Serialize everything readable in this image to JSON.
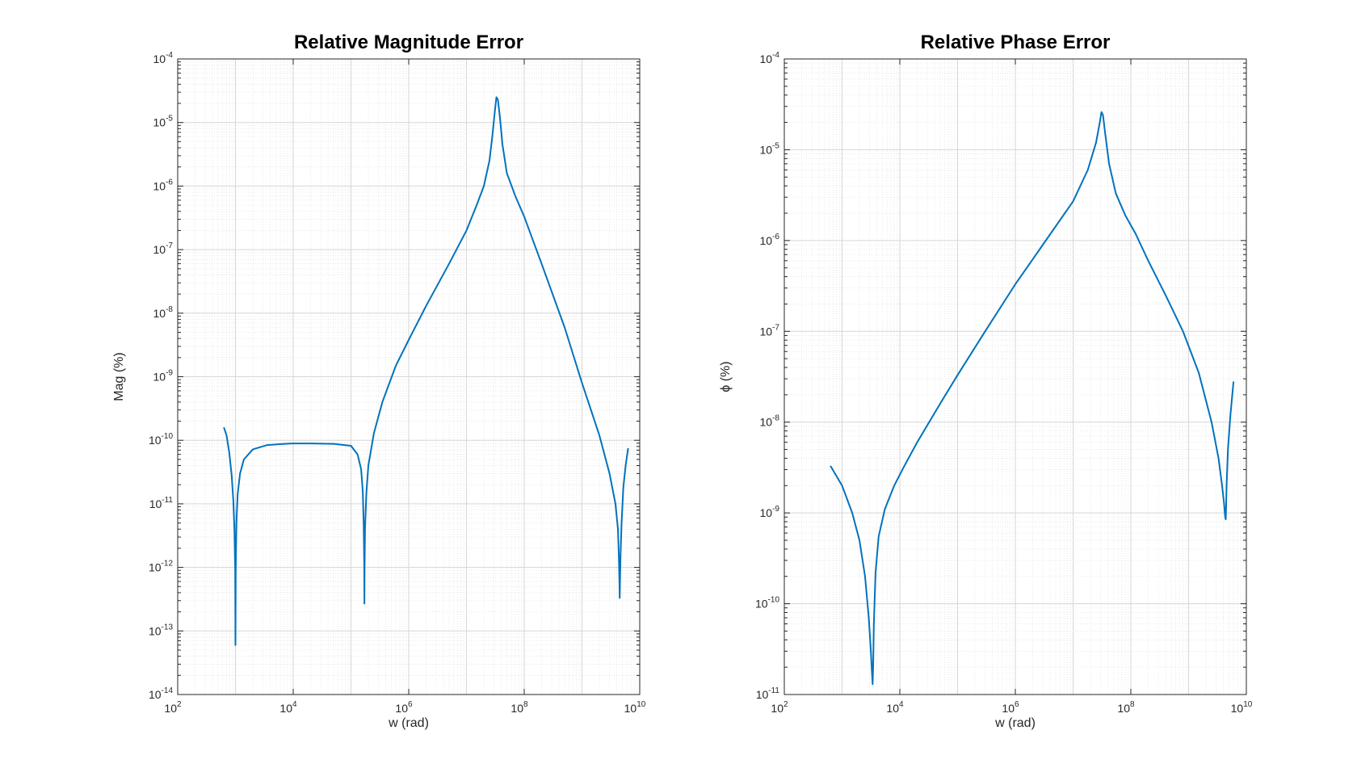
{
  "colors": {
    "line": "#0072BD",
    "axis": "#262626",
    "grid_major": "#d6d6d6",
    "grid_minor": "#e4e4e4",
    "background": "#ffffff"
  },
  "chart_data": [
    {
      "type": "line",
      "title": "Relative Magnitude Error",
      "xlabel": "w (rad)",
      "ylabel": "Mag (%)",
      "xscale": "log",
      "yscale": "log",
      "xlim": [
        100,
        10000000000
      ],
      "ylim": [
        1e-14,
        0.0001
      ],
      "xticks": [
        {
          "base": "10",
          "exp": "2"
        },
        {
          "base": "10",
          "exp": "4"
        },
        {
          "base": "10",
          "exp": "6"
        },
        {
          "base": "10",
          "exp": "8"
        },
        {
          "base": "10",
          "exp": "10"
        }
      ],
      "yticks": [
        {
          "base": "10",
          "exp": "-14"
        },
        {
          "base": "10",
          "exp": "-13"
        },
        {
          "base": "10",
          "exp": "-12"
        },
        {
          "base": "10",
          "exp": "-11"
        },
        {
          "base": "10",
          "exp": "-10"
        },
        {
          "base": "10",
          "exp": "-9"
        },
        {
          "base": "10",
          "exp": "-8"
        },
        {
          "base": "10",
          "exp": "-7"
        },
        {
          "base": "10",
          "exp": "-6"
        },
        {
          "base": "10",
          "exp": "-5"
        },
        {
          "base": "10",
          "exp": "-4"
        }
      ],
      "grid": true,
      "series": [
        {
          "x": [
            630,
            700,
            780,
            860,
            920,
            960,
            990,
            1000,
            1010,
            1040,
            1090,
            1200,
            1400,
            2000,
            3500,
            7000,
            10000,
            20000,
            50000,
            100000,
            130000,
            150000,
            160000,
            166000,
            170000,
            171000,
            172000,
            175000,
            185000,
            200000,
            250000,
            350000,
            600000,
            1000000,
            2000000,
            5000000,
            10000000,
            15000000,
            20000000,
            25000000,
            28000000,
            31000000,
            33000000,
            35000000,
            38000000,
            42000000,
            50000000,
            70000000,
            100000000,
            200000000,
            500000000,
            1000000000,
            2000000000,
            3000000000,
            3800000000,
            4200000000,
            4350000000,
            4450000000,
            4500000000,
            4550000000,
            4650000000,
            4850000000,
            5200000000,
            5700000000,
            6300000000
          ],
          "y": [
            1.6e-10,
            1.2e-10,
            6.5e-11,
            2.8e-11,
            1.1e-11,
            4e-12,
            9e-13,
            6e-14,
            9e-13,
            5e-12,
            1.4e-11,
            3e-11,
            5e-11,
            7.2e-11,
            8.4e-11,
            8.8e-11,
            8.9e-11,
            8.9e-11,
            8.8e-11,
            8.2e-11,
            6e-11,
            3.5e-11,
            1.6e-11,
            5e-12,
            1e-12,
            2.7e-13,
            1e-12,
            4e-12,
            1.5e-11,
            4e-11,
            1.3e-10,
            4e-10,
            1.5e-09,
            3.8e-09,
            1.3e-08,
            6e-08,
            2e-07,
            5e-07,
            1e-06,
            2.5e-06,
            6e-06,
            1.5e-05,
            2.5e-05,
            2.3e-05,
            1.2e-05,
            4.5e-06,
            1.6e-06,
            7e-07,
            3.3e-07,
            6e-08,
            6e-09,
            8e-10,
            1.2e-10,
            3e-11,
            1e-11,
            4e-12,
            1.5e-12,
            6e-13,
            3.3e-13,
            6e-13,
            1.5e-12,
            5e-12,
            1.8e-11,
            4e-11,
            7.5e-11
          ]
        }
      ]
    },
    {
      "type": "line",
      "title": "Relative Phase Error",
      "xlabel": "w (rad)",
      "ylabel": "ϕ (%)",
      "xscale": "log",
      "yscale": "log",
      "xlim": [
        100,
        10000000000
      ],
      "ylim": [
        1e-11,
        0.0001
      ],
      "xticks": [
        {
          "base": "10",
          "exp": "2"
        },
        {
          "base": "10",
          "exp": "4"
        },
        {
          "base": "10",
          "exp": "6"
        },
        {
          "base": "10",
          "exp": "8"
        },
        {
          "base": "10",
          "exp": "10"
        }
      ],
      "yticks": [
        {
          "base": "10",
          "exp": "-11"
        },
        {
          "base": "10",
          "exp": "-10"
        },
        {
          "base": "10",
          "exp": "-9"
        },
        {
          "base": "10",
          "exp": "-8"
        },
        {
          "base": "10",
          "exp": "-7"
        },
        {
          "base": "10",
          "exp": "-6"
        },
        {
          "base": "10",
          "exp": "-5"
        },
        {
          "base": "10",
          "exp": "-4"
        }
      ],
      "grid": true,
      "series": [
        {
          "x": [
            630,
            1000,
            1500,
            2000,
            2500,
            2900,
            3150,
            3300,
            3380,
            3450,
            3550,
            3800,
            4300,
            5500,
            8000,
            12000,
            20000,
            50000,
            100000,
            300000,
            1000000,
            3000000,
            10000000,
            18000000,
            25000000,
            29000000,
            31000000,
            33000000,
            36000000,
            42000000,
            55000000,
            80000000,
            120000000,
            200000000,
            400000000,
            800000000,
            1500000000,
            2500000000,
            3300000000,
            3800000000,
            4100000000,
            4300000000,
            4400000000,
            4450000000,
            4550000000,
            4800000000,
            5300000000,
            6000000000
          ],
          "y": [
            3.3e-09,
            2e-09,
            1e-09,
            5e-10,
            2e-10,
            7e-11,
            3e-11,
            1.7e-11,
            1.3e-11,
            2e-11,
            6e-11,
            2.2e-10,
            5.5e-10,
            1.1e-09,
            2e-09,
            3.3e-09,
            6e-09,
            1.6e-08,
            3.3e-08,
            1e-07,
            3.3e-07,
            9e-07,
            2.7e-06,
            6e-06,
            1.2e-05,
            2e-05,
            2.6e-05,
            2.4e-05,
            1.5e-05,
            7e-06,
            3.3e-06,
            1.9e-06,
            1.2e-06,
            6e-07,
            2.5e-07,
            1e-07,
            3.5e-08,
            1e-08,
            4e-09,
            2e-09,
            1.3e-09,
            9e-10,
            8.5e-10,
            1.1e-09,
            2e-09,
            5e-09,
            1.2e-08,
            2.8e-08
          ]
        }
      ]
    }
  ]
}
